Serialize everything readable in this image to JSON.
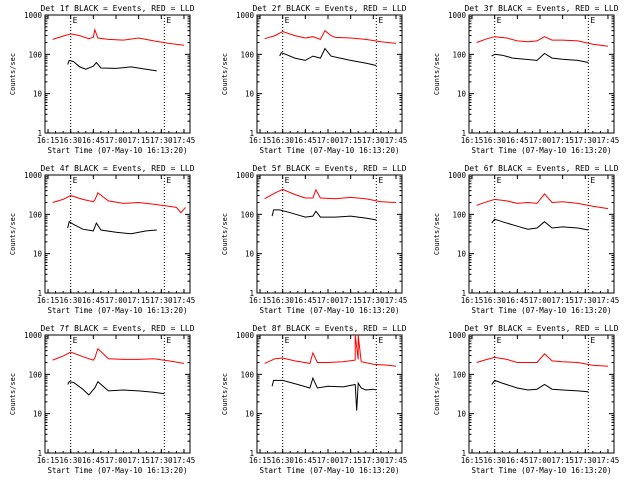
{
  "chart_data": [
    {
      "type": "line",
      "title": "Det 1f BLACK = Events, RED = LLD",
      "xlabel": "Start Time (07-May-10 16:13:20)",
      "ylabel": "Counts/sec",
      "y_scale": "log",
      "xlim": [
        "16:13",
        "17:49"
      ],
      "ylim": [
        1,
        1000
      ],
      "x_ticks": [
        "16:15",
        "16:30",
        "16:45",
        "17:00",
        "17:15",
        "17:30",
        "17:45"
      ],
      "y_ticks": [
        "1",
        "10",
        "100",
        "1000"
      ],
      "markers": [
        {
          "label": "E",
          "x": "16:30"
        },
        {
          "label": "E",
          "x": "17:32"
        }
      ],
      "series": [
        {
          "name": "LLD",
          "color": "#ff0000",
          "x": [
            "16:18",
            "16:25",
            "16:30",
            "16:36",
            "16:42",
            "16:45",
            "16:46",
            "16:48",
            "16:55",
            "17:05",
            "17:15",
            "17:25",
            "17:35",
            "17:45"
          ],
          "y": [
            240,
            290,
            330,
            300,
            250,
            270,
            420,
            260,
            240,
            230,
            260,
            220,
            190,
            170
          ]
        },
        {
          "name": "Events",
          "color": "#000000",
          "x": [
            "16:28",
            "16:29",
            "16:32",
            "16:36",
            "16:40",
            "16:45",
            "16:47",
            "16:50",
            "17:00",
            "17:10",
            "17:20",
            "17:27"
          ],
          "y": [
            55,
            70,
            65,
            48,
            42,
            50,
            62,
            45,
            44,
            48,
            42,
            38
          ]
        }
      ]
    },
    {
      "type": "line",
      "title": "Det 2f BLACK = Events, RED = LLD",
      "xlabel": "Start Time (07-May-10 16:13:20)",
      "ylabel": "Counts/sec",
      "y_scale": "log",
      "xlim": [
        "16:13",
        "17:49"
      ],
      "ylim": [
        1,
        1000
      ],
      "x_ticks": [
        "16:15",
        "16:30",
        "16:45",
        "17:00",
        "17:15",
        "17:30",
        "17:45"
      ],
      "y_ticks": [
        "1",
        "10",
        "100",
        "1000"
      ],
      "markers": [
        {
          "label": "E",
          "x": "16:30"
        },
        {
          "label": "E",
          "x": "17:32"
        }
      ],
      "series": [
        {
          "name": "LLD",
          "color": "#ff0000",
          "x": [
            "16:18",
            "16:25",
            "16:30",
            "16:38",
            "16:45",
            "16:50",
            "16:55",
            "16:58",
            "17:02",
            "17:05",
            "17:15",
            "17:25",
            "17:35",
            "17:45"
          ],
          "y": [
            250,
            300,
            380,
            300,
            260,
            280,
            240,
            400,
            300,
            270,
            260,
            240,
            210,
            190
          ]
        },
        {
          "name": "Events",
          "color": "#000000",
          "x": [
            "16:28",
            "16:29",
            "16:32",
            "16:38",
            "16:45",
            "16:50",
            "16:55",
            "16:58",
            "17:02",
            "17:08",
            "17:15",
            "17:25",
            "17:32"
          ],
          "y": [
            90,
            110,
            100,
            80,
            70,
            90,
            80,
            140,
            90,
            80,
            70,
            60,
            52
          ]
        }
      ]
    },
    {
      "type": "line",
      "title": "Det 3f BLACK = Events, RED = LLD",
      "xlabel": "Start Time (07-May-10 16:13:20)",
      "ylabel": "Counts/sec",
      "y_scale": "log",
      "xlim": [
        "16:13",
        "17:49"
      ],
      "ylim": [
        1,
        1000
      ],
      "x_ticks": [
        "16:15",
        "16:30",
        "16:45",
        "17:00",
        "17:15",
        "17:30",
        "17:45"
      ],
      "y_ticks": [
        "1",
        "10",
        "100",
        "1000"
      ],
      "markers": [
        {
          "label": "E",
          "x": "16:30"
        },
        {
          "label": "E",
          "x": "17:32"
        }
      ],
      "series": [
        {
          "name": "LLD",
          "color": "#ff0000",
          "x": [
            "16:18",
            "16:25",
            "16:30",
            "16:38",
            "16:45",
            "16:52",
            "16:58",
            "17:03",
            "17:08",
            "17:15",
            "17:25",
            "17:35",
            "17:45"
          ],
          "y": [
            200,
            250,
            280,
            260,
            220,
            210,
            220,
            280,
            230,
            230,
            220,
            180,
            160
          ]
        },
        {
          "name": "Events",
          "color": "#000000",
          "x": [
            "16:28",
            "16:30",
            "16:35",
            "16:42",
            "16:50",
            "16:58",
            "17:03",
            "17:08",
            "17:15",
            "17:25",
            "17:32"
          ],
          "y": [
            90,
            100,
            95,
            80,
            75,
            70,
            105,
            80,
            75,
            70,
            62
          ]
        }
      ]
    },
    {
      "type": "line",
      "title": "Det 4f BLACK = Events, RED = LLD",
      "xlabel": "Start Time (07-May-10 16:13:20)",
      "ylabel": "Counts/sec",
      "y_scale": "log",
      "xlim": [
        "16:13",
        "17:49"
      ],
      "ylim": [
        1,
        1000
      ],
      "x_ticks": [
        "16:15",
        "16:30",
        "16:45",
        "17:00",
        "17:15",
        "17:30",
        "17:45"
      ],
      "y_ticks": [
        "1",
        "10",
        "100",
        "1000"
      ],
      "markers": [
        {
          "label": "E",
          "x": "16:30"
        },
        {
          "label": "E",
          "x": "17:32"
        }
      ],
      "series": [
        {
          "name": "LLD",
          "color": "#ff0000",
          "x": [
            "16:18",
            "16:25",
            "16:30",
            "16:38",
            "16:45",
            "16:46",
            "16:48",
            "16:55",
            "17:05",
            "17:15",
            "17:25",
            "17:35",
            "17:40",
            "17:43",
            "17:46"
          ],
          "y": [
            200,
            240,
            300,
            240,
            210,
            230,
            350,
            220,
            190,
            200,
            180,
            160,
            150,
            110,
            150
          ]
        },
        {
          "name": "Events",
          "color": "#000000",
          "x": [
            "16:28",
            "16:29",
            "16:32",
            "16:38",
            "16:45",
            "16:47",
            "16:50",
            "17:00",
            "17:10",
            "17:20",
            "17:27"
          ],
          "y": [
            45,
            65,
            55,
            42,
            38,
            60,
            40,
            35,
            32,
            38,
            40
          ]
        }
      ]
    },
    {
      "type": "line",
      "title": "Det 5f BLACK = Events, RED = LLD",
      "xlabel": "Start Time (07-May-10 16:13:20)",
      "ylabel": "Counts/sec",
      "y_scale": "log",
      "xlim": [
        "16:13",
        "17:49"
      ],
      "ylim": [
        1,
        1000
      ],
      "x_ticks": [
        "16:15",
        "16:30",
        "16:45",
        "17:00",
        "17:15",
        "17:30",
        "17:45"
      ],
      "y_ticks": [
        "1",
        "10",
        "100",
        "1000"
      ],
      "markers": [
        {
          "label": "E",
          "x": "16:30"
        },
        {
          "label": "E",
          "x": "17:32"
        }
      ],
      "series": [
        {
          "name": "LLD",
          "color": "#ff0000",
          "x": [
            "16:18",
            "16:25",
            "16:30",
            "16:38",
            "16:45",
            "16:50",
            "16:52",
            "16:55",
            "17:05",
            "17:15",
            "17:25",
            "17:35",
            "17:45"
          ],
          "y": [
            250,
            350,
            430,
            320,
            260,
            260,
            420,
            260,
            250,
            270,
            250,
            210,
            200
          ]
        },
        {
          "name": "Events",
          "color": "#000000",
          "x": [
            "16:23",
            "16:24",
            "16:28",
            "16:35",
            "16:45",
            "16:50",
            "16:52",
            "16:55",
            "17:05",
            "17:15",
            "17:25",
            "17:32"
          ],
          "y": [
            90,
            130,
            130,
            110,
            85,
            90,
            120,
            85,
            85,
            90,
            80,
            72
          ]
        }
      ]
    },
    {
      "type": "line",
      "title": "Det 6f BLACK = Events, RED = LLD",
      "xlabel": "Start Time (07-May-10 16:13:20)",
      "ylabel": "Counts/sec",
      "y_scale": "log",
      "xlim": [
        "16:13",
        "17:49"
      ],
      "ylim": [
        1,
        1000
      ],
      "x_ticks": [
        "16:15",
        "16:30",
        "16:45",
        "17:00",
        "17:15",
        "17:30",
        "17:45"
      ],
      "y_ticks": [
        "1",
        "10",
        "100",
        "1000"
      ],
      "markers": [
        {
          "label": "E",
          "x": "16:30"
        },
        {
          "label": "E",
          "x": "17:32"
        }
      ],
      "series": [
        {
          "name": "LLD",
          "color": "#ff0000",
          "x": [
            "16:18",
            "16:25",
            "16:30",
            "16:38",
            "16:45",
            "16:52",
            "16:58",
            "17:03",
            "17:08",
            "17:15",
            "17:25",
            "17:35",
            "17:45"
          ],
          "y": [
            170,
            210,
            240,
            220,
            190,
            200,
            190,
            330,
            200,
            210,
            190,
            160,
            140
          ]
        },
        {
          "name": "Events",
          "color": "#000000",
          "x": [
            "16:28",
            "16:30",
            "16:35",
            "16:45",
            "16:52",
            "16:58",
            "17:03",
            "17:08",
            "17:15",
            "17:25",
            "17:32"
          ],
          "y": [
            60,
            75,
            65,
            50,
            42,
            45,
            65,
            45,
            48,
            45,
            40
          ]
        }
      ]
    },
    {
      "type": "line",
      "title": "Det 7f BLACK = Events, RED = LLD",
      "xlabel": "Start Time (07-May-10 16:13:20)",
      "ylabel": "Counts/sec",
      "y_scale": "log",
      "xlim": [
        "16:13",
        "17:49"
      ],
      "ylim": [
        1,
        1000
      ],
      "x_ticks": [
        "16:15",
        "16:30",
        "16:45",
        "17:00",
        "17:15",
        "17:30",
        "17:45"
      ],
      "y_ticks": [
        "1",
        "10",
        "100",
        "1000"
      ],
      "markers": [
        {
          "label": "E",
          "x": "16:30"
        },
        {
          "label": "E",
          "x": "17:32"
        }
      ],
      "series": [
        {
          "name": "LLD",
          "color": "#ff0000",
          "x": [
            "16:18",
            "16:25",
            "16:30",
            "16:38",
            "16:45",
            "16:46",
            "16:48",
            "16:55",
            "17:05",
            "17:15",
            "17:25",
            "17:35",
            "17:45"
          ],
          "y": [
            230,
            290,
            370,
            280,
            230,
            260,
            450,
            250,
            240,
            240,
            250,
            220,
            190
          ]
        },
        {
          "name": "Events",
          "color": "#000000",
          "x": [
            "16:28",
            "16:29",
            "16:32",
            "16:38",
            "16:42",
            "16:46",
            "16:48",
            "16:55",
            "17:05",
            "17:15",
            "17:25",
            "17:32"
          ],
          "y": [
            55,
            65,
            62,
            42,
            30,
            45,
            65,
            38,
            40,
            38,
            35,
            32
          ]
        }
      ]
    },
    {
      "type": "line",
      "title": "Det 8f BLACK = Events, RED = LLD",
      "xlabel": "Start Time (07-May-10 16:13:20)",
      "ylabel": "Counts/sec",
      "y_scale": "log",
      "xlim": [
        "16:13",
        "17:49"
      ],
      "ylim": [
        1,
        1000
      ],
      "x_ticks": [
        "16:15",
        "16:30",
        "16:45",
        "17:00",
        "17:15",
        "17:30",
        "17:45"
      ],
      "y_ticks": [
        "1",
        "10",
        "100",
        "1000"
      ],
      "markers": [
        {
          "label": "E",
          "x": "16:30"
        },
        {
          "label": "E",
          "x": "17:32"
        }
      ],
      "series": [
        {
          "name": "LLD",
          "color": "#ff0000",
          "x": [
            "16:18",
            "16:25",
            "16:30",
            "16:38",
            "16:48",
            "16:50",
            "16:53",
            "17:00",
            "17:10",
            "17:18",
            "17:18",
            "17:20",
            "17:20",
            "17:22",
            "17:30",
            "17:40",
            "17:45"
          ],
          "y": [
            190,
            250,
            260,
            220,
            190,
            350,
            200,
            200,
            210,
            230,
            1000,
            240,
            1000,
            210,
            180,
            170,
            160
          ]
        },
        {
          "name": "Events",
          "color": "#000000",
          "x": [
            "16:23",
            "16:24",
            "16:30",
            "16:40",
            "16:48",
            "16:50",
            "16:53",
            "17:00",
            "17:10",
            "17:18",
            "17:19",
            "17:20",
            "17:22",
            "17:25",
            "17:30",
            "17:32"
          ],
          "y": [
            50,
            70,
            70,
            55,
            45,
            80,
            45,
            50,
            48,
            55,
            12,
            60,
            45,
            40,
            42,
            40
          ]
        }
      ]
    },
    {
      "type": "line",
      "title": "Det 9f BLACK = Events, RED = LLD",
      "xlabel": "Start Time (07-May-10 16:13:20)",
      "ylabel": "Counts/sec",
      "y_scale": "log",
      "xlim": [
        "16:13",
        "17:49"
      ],
      "ylim": [
        1,
        1000
      ],
      "x_ticks": [
        "16:15",
        "16:30",
        "16:45",
        "17:00",
        "17:15",
        "17:30",
        "17:45"
      ],
      "y_ticks": [
        "1",
        "10",
        "100",
        "1000"
      ],
      "markers": [
        {
          "label": "E",
          "x": "16:30"
        },
        {
          "label": "E",
          "x": "17:32"
        }
      ],
      "series": [
        {
          "name": "LLD",
          "color": "#ff0000",
          "x": [
            "16:18",
            "16:25",
            "16:30",
            "16:38",
            "16:45",
            "16:52",
            "16:58",
            "17:03",
            "17:08",
            "17:15",
            "17:25",
            "17:35",
            "17:45"
          ],
          "y": [
            200,
            240,
            270,
            240,
            200,
            200,
            200,
            330,
            220,
            210,
            200,
            170,
            160
          ]
        },
        {
          "name": "Events",
          "color": "#000000",
          "x": [
            "16:28",
            "16:30",
            "16:35",
            "16:45",
            "16:52",
            "16:58",
            "17:03",
            "17:08",
            "17:15",
            "17:25",
            "17:32"
          ],
          "y": [
            55,
            70,
            60,
            45,
            40,
            42,
            55,
            42,
            40,
            38,
            36
          ]
        }
      ]
    }
  ]
}
